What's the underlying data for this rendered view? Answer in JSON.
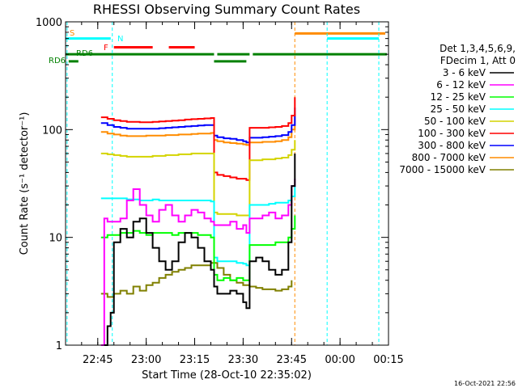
{
  "chart_data": {
    "type": "line",
    "title": "RHESSI Observing Summary Count Rates",
    "xlabel": "Start Time (28-Oct-10 22:35:02)",
    "ylabel": "Count Rate (s⁻¹ detector⁻¹)",
    "y_scale": "log",
    "ylim": [
      1,
      1000
    ],
    "xlim": [
      "22:35:02",
      "00:15:00"
    ],
    "x_ticks": [
      "22:45",
      "23:00",
      "23:15",
      "23:30",
      "23:45",
      "00:00",
      "00:15"
    ],
    "y_ticks": [
      "1",
      "10",
      "100",
      "1000"
    ],
    "legend": {
      "placement": "right",
      "header": [
        "Det 1,3,4,5,6,9,",
        "FDecim 1, Att 0"
      ],
      "entries": [
        {
          "label": "3 - 6 keV",
          "color": "#000000"
        },
        {
          "label": "6 - 12 keV",
          "color": "#ff00ff"
        },
        {
          "label": "12 - 25 keV",
          "color": "#00ff00"
        },
        {
          "label": "25 - 50 keV",
          "color": "#00ffff"
        },
        {
          "label": "50 - 100 keV",
          "color": "#d4d400"
        },
        {
          "label": "100 - 300 keV",
          "color": "#ff0000"
        },
        {
          "label": "300 - 800 keV",
          "color": "#0000ff"
        },
        {
          "label": "800 - 7000 keV",
          "color": "#ff8c00"
        },
        {
          "label": "7000 - 15000 keV",
          "color": "#808000"
        }
      ]
    },
    "flags": [
      {
        "label": "S",
        "color": "#ff8c00"
      },
      {
        "label": "N",
        "color": "#00ffff"
      },
      {
        "label": "F",
        "color": "#ff0000"
      },
      {
        "label": "RD6",
        "color": "#008000"
      },
      {
        "label": "RD6",
        "color": "#008000"
      }
    ],
    "flag_bars": [
      {
        "color": "#00ffff",
        "y": 700,
        "segments": [
          [
            "22:35:02",
            "22:49:00"
          ],
          [
            "23:56:00",
            "00:12:00"
          ]
        ]
      },
      {
        "color": "#ff8c00",
        "y": 780,
        "segments": [
          [
            "23:46:00",
            "00:14:00"
          ]
        ]
      },
      {
        "color": "#ff0000",
        "y": 580,
        "segments": [
          [
            "22:50:00",
            "23:02:00"
          ],
          [
            "23:07:00",
            "23:15:00"
          ]
        ]
      },
      {
        "color": "#008000",
        "y": 500,
        "segments": [
          [
            "22:35:02",
            "23:21:00"
          ],
          [
            "23:22:00",
            "23:32:00"
          ],
          [
            "23:33:00",
            "00:14:30"
          ]
        ]
      },
      {
        "color": "#008000",
        "y": 430,
        "segments": [
          [
            "22:36:00",
            "22:39:00"
          ],
          [
            "23:21:00",
            "23:31:00"
          ]
        ]
      }
    ],
    "vlines": [
      {
        "time": "22:35:30",
        "color": "#00ffff"
      },
      {
        "time": "22:49:30",
        "color": "#00ffff"
      },
      {
        "time": "23:46:00",
        "color": "#ff8c00"
      },
      {
        "time": "23:56:00",
        "color": "#00ffff"
      },
      {
        "time": "00:12:00",
        "color": "#00ffff"
      }
    ],
    "series": [
      {
        "name": "3 - 6 keV",
        "color": "#000000",
        "x": [
          "22:47:00",
          "22:48:00",
          "22:49:00",
          "22:50:00",
          "22:52:00",
          "22:54:00",
          "22:56:00",
          "22:58:00",
          "23:00:00",
          "23:02:00",
          "23:04:00",
          "23:06:00",
          "23:08:00",
          "23:10:00",
          "23:12:00",
          "23:14:00",
          "23:16:00",
          "23:18:00",
          "23:20:00",
          "23:21:00",
          "23:22:00",
          "23:24:00",
          "23:26:00",
          "23:28:00",
          "23:30:00",
          "23:31:00",
          "23:32:00",
          "23:34:00",
          "23:36:00",
          "23:38:00",
          "23:40:00",
          "23:42:00",
          "23:44:00",
          "23:45:00",
          "23:46:00"
        ],
        "y": [
          1.0,
          1.5,
          2.0,
          9,
          12,
          10,
          14,
          15,
          11,
          8,
          6,
          5,
          6,
          9,
          11,
          10,
          8,
          6,
          5,
          3.5,
          3.0,
          3.0,
          3.2,
          3.0,
          2.5,
          2.2,
          6,
          6.5,
          6,
          5,
          4.5,
          5,
          9,
          30,
          60
        ]
      },
      {
        "name": "6 - 12 keV",
        "color": "#ff00ff",
        "x": [
          "22:46:00",
          "22:47:00",
          "22:48:00",
          "22:50:00",
          "22:52:00",
          "22:54:00",
          "22:56:00",
          "22:58:00",
          "23:00:00",
          "23:02:00",
          "23:04:00",
          "23:06:00",
          "23:08:00",
          "23:10:00",
          "23:12:00",
          "23:14:00",
          "23:16:00",
          "23:18:00",
          "23:20:00",
          "23:21:00",
          "23:22:00",
          "23:24:00",
          "23:26:00",
          "23:28:00",
          "23:30:00",
          "23:31:00",
          "23:32:00",
          "23:34:00",
          "23:36:00",
          "23:38:00",
          "23:40:00",
          "23:42:00",
          "23:44:00",
          "23:45:00",
          "23:46:00"
        ],
        "y": [
          1.0,
          15,
          14,
          14,
          15,
          22,
          28,
          20,
          16,
          14,
          18,
          20,
          16,
          14,
          16,
          18,
          17,
          15,
          14,
          13,
          13,
          13,
          14,
          12,
          13,
          11,
          15,
          15,
          16,
          17,
          15,
          16,
          20,
          30,
          35
        ]
      },
      {
        "name": "12 - 25 keV",
        "color": "#00ff00",
        "x": [
          "22:46:00",
          "22:48:00",
          "22:50:00",
          "22:52:00",
          "22:54:00",
          "22:56:00",
          "22:58:00",
          "23:00:00",
          "23:02:00",
          "23:04:00",
          "23:06:00",
          "23:08:00",
          "23:10:00",
          "23:12:00",
          "23:14:00",
          "23:16:00",
          "23:18:00",
          "23:20:00",
          "23:21:00",
          "23:22:00",
          "23:24:00",
          "23:26:00",
          "23:28:00",
          "23:30:00",
          "23:31:00",
          "23:32:00",
          "23:34:00",
          "23:36:00",
          "23:38:00",
          "23:40:00",
          "23:42:00",
          "23:44:00",
          "23:45:00",
          "23:46:00"
        ],
        "y": [
          10,
          10.5,
          10.5,
          11,
          11,
          11.5,
          11,
          10.5,
          11,
          11,
          11,
          10.5,
          11,
          11,
          11,
          10.5,
          10.5,
          10,
          4.5,
          4.0,
          4.2,
          4.0,
          4.2,
          4.0,
          4.0,
          8.5,
          8.5,
          8.5,
          8.5,
          9,
          9,
          10,
          12,
          16
        ]
      },
      {
        "name": "25 - 50 keV",
        "color": "#00ffff",
        "x": [
          "22:46:00",
          "22:48:00",
          "22:50:00",
          "22:52:00",
          "22:54:00",
          "22:56:00",
          "22:58:00",
          "23:00:00",
          "23:02:00",
          "23:04:00",
          "23:06:00",
          "23:08:00",
          "23:10:00",
          "23:12:00",
          "23:14:00",
          "23:16:00",
          "23:18:00",
          "23:20:00",
          "23:21:00",
          "23:22:00",
          "23:24:00",
          "23:26:00",
          "23:28:00",
          "23:30:00",
          "23:31:00",
          "23:32:00",
          "23:34:00",
          "23:36:00",
          "23:38:00",
          "23:40:00",
          "23:42:00",
          "23:44:00",
          "23:45:00",
          "23:46:00"
        ],
        "y": [
          23,
          23,
          23,
          23,
          22.5,
          22.5,
          22,
          22,
          22.5,
          22,
          22,
          22,
          22,
          22,
          22,
          22,
          22,
          21.5,
          6.5,
          6.0,
          6.0,
          6.0,
          5.8,
          5.7,
          5.5,
          20,
          20,
          20,
          20.5,
          21,
          21,
          22,
          24,
          30
        ]
      },
      {
        "name": "50 - 100 keV",
        "color": "#d4d400",
        "x": [
          "22:46:00",
          "22:48:00",
          "22:50:00",
          "22:52:00",
          "22:54:00",
          "22:56:00",
          "22:58:00",
          "23:00:00",
          "23:02:00",
          "23:04:00",
          "23:06:00",
          "23:08:00",
          "23:10:00",
          "23:12:00",
          "23:14:00",
          "23:16:00",
          "23:18:00",
          "23:20:00",
          "23:21:00",
          "23:22:00",
          "23:24:00",
          "23:26:00",
          "23:28:00",
          "23:30:00",
          "23:31:00",
          "23:32:00",
          "23:34:00",
          "23:36:00",
          "23:38:00",
          "23:40:00",
          "23:42:00",
          "23:44:00",
          "23:45:00",
          "23:46:00"
        ],
        "y": [
          60,
          59,
          58,
          57,
          56,
          56,
          56,
          56,
          57,
          57,
          58,
          58,
          59,
          59,
          60,
          60,
          60,
          60,
          17,
          16.5,
          16.5,
          16.5,
          16,
          16,
          16,
          52,
          52,
          53,
          53,
          54,
          55,
          58,
          65,
          80
        ]
      },
      {
        "name": "100 - 300 keV",
        "color": "#ff0000",
        "x": [
          "22:46:00",
          "22:48:00",
          "22:50:00",
          "22:52:00",
          "22:54:00",
          "22:56:00",
          "22:58:00",
          "23:00:00",
          "23:02:00",
          "23:04:00",
          "23:06:00",
          "23:08:00",
          "23:10:00",
          "23:12:00",
          "23:14:00",
          "23:16:00",
          "23:18:00",
          "23:20:00",
          "23:21:00",
          "23:22:00",
          "23:24:00",
          "23:26:00",
          "23:28:00",
          "23:30:00",
          "23:31:00",
          "23:32:00",
          "23:34:00",
          "23:36:00",
          "23:38:00",
          "23:40:00",
          "23:42:00",
          "23:44:00",
          "23:45:00",
          "23:46:00"
        ],
        "y": [
          130,
          126,
          122,
          120,
          118,
          118,
          117,
          117,
          118,
          119,
          120,
          121,
          122,
          124,
          125,
          126,
          127,
          128,
          40,
          38,
          37,
          36,
          35,
          35,
          34,
          104,
          104,
          104,
          105,
          106,
          108,
          115,
          135,
          200
        ]
      },
      {
        "name": "300 - 800 keV",
        "color": "#0000ff",
        "x": [
          "22:46:00",
          "22:48:00",
          "22:50:00",
          "22:52:00",
          "22:54:00",
          "22:56:00",
          "22:58:00",
          "23:00:00",
          "23:02:00",
          "23:04:00",
          "23:06:00",
          "23:08:00",
          "23:10:00",
          "23:12:00",
          "23:14:00",
          "23:16:00",
          "23:18:00",
          "23:20:00",
          "23:21:00",
          "23:22:00",
          "23:24:00",
          "23:26:00",
          "23:28:00",
          "23:30:00",
          "23:31:00",
          "23:32:00",
          "23:34:00",
          "23:36:00",
          "23:38:00",
          "23:40:00",
          "23:42:00",
          "23:44:00",
          "23:45:00",
          "23:46:00"
        ],
        "y": [
          115,
          110,
          106,
          104,
          102,
          102,
          102,
          102,
          102,
          103,
          104,
          105,
          106,
          107,
          108,
          109,
          110,
          110,
          88,
          85,
          83,
          82,
          80,
          78,
          76,
          84,
          84,
          85,
          86,
          87,
          89,
          95,
          110,
          160
        ]
      },
      {
        "name": "800 - 7000 keV",
        "color": "#ff8c00",
        "x": [
          "22:46:00",
          "22:48:00",
          "22:50:00",
          "22:52:00",
          "22:54:00",
          "22:56:00",
          "22:58:00",
          "23:00:00",
          "23:02:00",
          "23:04:00",
          "23:06:00",
          "23:08:00",
          "23:10:00",
          "23:12:00",
          "23:14:00",
          "23:16:00",
          "23:18:00",
          "23:20:00",
          "23:21:00",
          "23:22:00",
          "23:24:00",
          "23:26:00",
          "23:28:00",
          "23:30:00",
          "23:31:00",
          "23:32:00",
          "23:34:00",
          "23:36:00",
          "23:38:00",
          "23:40:00",
          "23:42:00",
          "23:44:00",
          "23:45:00",
          "23:46:00"
        ],
        "y": [
          95,
          92,
          90,
          88,
          87,
          87,
          87,
          88,
          88,
          88,
          89,
          89,
          90,
          90,
          91,
          92,
          92,
          93,
          80,
          78,
          76,
          75,
          74,
          73,
          72,
          76,
          76,
          77,
          77,
          78,
          80,
          85,
          100,
          140
        ]
      },
      {
        "name": "7000 - 15000 keV",
        "color": "#808000",
        "x": [
          "22:46:00",
          "22:48:00",
          "22:50:00",
          "22:52:00",
          "22:54:00",
          "22:56:00",
          "22:58:00",
          "23:00:00",
          "23:02:00",
          "23:04:00",
          "23:06:00",
          "23:08:00",
          "23:10:00",
          "23:12:00",
          "23:14:00",
          "23:16:00",
          "23:18:00",
          "23:20:00",
          "23:22:00",
          "23:24:00",
          "23:26:00",
          "23:28:00",
          "23:30:00",
          "23:32:00",
          "23:34:00",
          "23:36:00",
          "23:38:00",
          "23:40:00",
          "23:42:00",
          "23:44:00",
          "23:45:00"
        ],
        "y": [
          3.0,
          2.8,
          3.0,
          3.2,
          3.0,
          3.5,
          3.2,
          3.6,
          3.8,
          4.2,
          4.5,
          4.8,
          5.0,
          5.2,
          5.5,
          5.5,
          5.5,
          5.8,
          5.2,
          4.5,
          4.0,
          3.8,
          3.6,
          3.5,
          3.4,
          3.3,
          3.3,
          3.2,
          3.3,
          3.5,
          4.0
        ]
      }
    ]
  },
  "footer": {
    "timestamp": "16-Oct-2021 22:56"
  }
}
